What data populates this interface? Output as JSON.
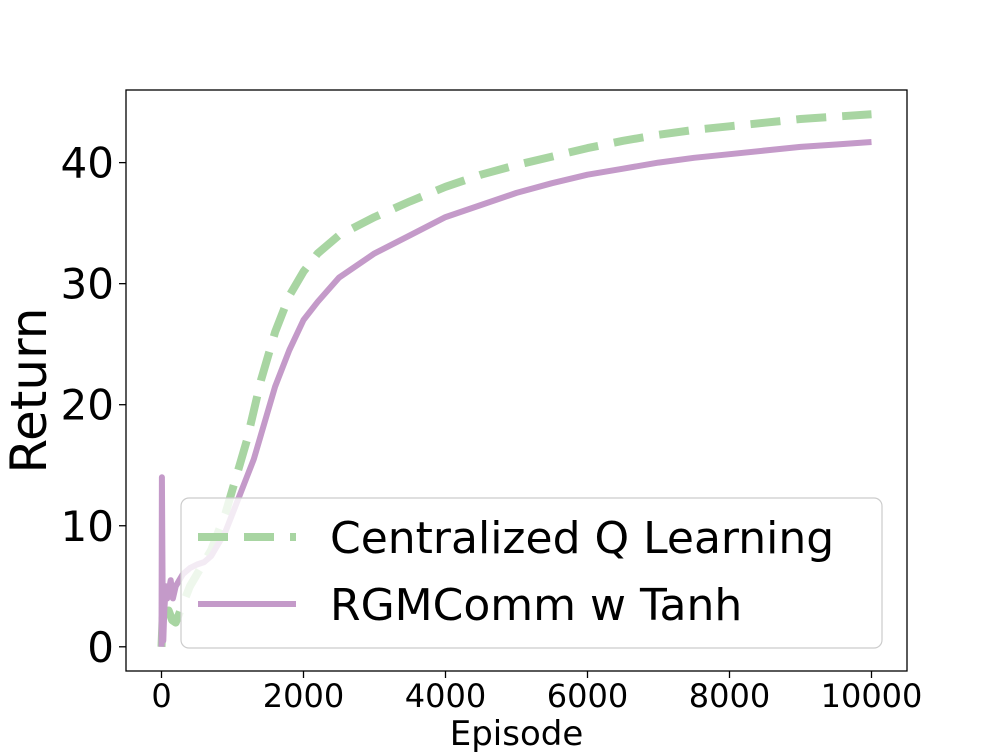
{
  "chart_data": {
    "type": "line",
    "title": "",
    "xlabel": "Episode",
    "ylabel": "Return",
    "xlim": [
      -500,
      10500
    ],
    "ylim": [
      -2,
      46
    ],
    "x_ticks": [
      0,
      2000,
      4000,
      6000,
      8000,
      10000
    ],
    "y_ticks": [
      0,
      10,
      20,
      30,
      40
    ],
    "x_tick_labels": [
      "0",
      "2000",
      "4000",
      "6000",
      "8000",
      "10000"
    ],
    "y_tick_labels": [
      "0",
      "10",
      "20",
      "30",
      "40"
    ],
    "grid": false,
    "legend": "lower-right",
    "series": [
      {
        "name": "Centralized Q Learning",
        "color": "#a8d5a2",
        "style": "dashed",
        "points": [
          [
            0,
            0
          ],
          [
            20,
            3
          ],
          [
            50,
            2.5
          ],
          [
            100,
            3
          ],
          [
            150,
            2.2
          ],
          [
            200,
            2
          ],
          [
            300,
            3.5
          ],
          [
            400,
            5
          ],
          [
            500,
            6
          ],
          [
            600,
            7
          ],
          [
            700,
            8
          ],
          [
            800,
            9.5
          ],
          [
            900,
            11
          ],
          [
            1000,
            13
          ],
          [
            1100,
            15
          ],
          [
            1200,
            17
          ],
          [
            1300,
            19.5
          ],
          [
            1400,
            22
          ],
          [
            1500,
            24
          ],
          [
            1600,
            26
          ],
          [
            1800,
            29
          ],
          [
            2000,
            31
          ],
          [
            2200,
            32.5
          ],
          [
            2500,
            34
          ],
          [
            3000,
            35.5
          ],
          [
            3500,
            36.8
          ],
          [
            4000,
            38
          ],
          [
            4500,
            39
          ],
          [
            5000,
            39.8
          ],
          [
            5500,
            40.5
          ],
          [
            6000,
            41.2
          ],
          [
            6500,
            41.8
          ],
          [
            7000,
            42.3
          ],
          [
            7500,
            42.7
          ],
          [
            8000,
            43.0
          ],
          [
            8500,
            43.3
          ],
          [
            9000,
            43.6
          ],
          [
            9500,
            43.8
          ],
          [
            10000,
            44.0
          ]
        ]
      },
      {
        "name": "RGMComm w Tanh",
        "color": "#c49ac9",
        "style": "solid",
        "points": [
          [
            0,
            0
          ],
          [
            5,
            14
          ],
          [
            15,
            5
          ],
          [
            25,
            0.5
          ],
          [
            40,
            3
          ],
          [
            60,
            5
          ],
          [
            80,
            4
          ],
          [
            100,
            4.5
          ],
          [
            130,
            5.5
          ],
          [
            160,
            4
          ],
          [
            200,
            5
          ],
          [
            250,
            5.5
          ],
          [
            300,
            6
          ],
          [
            400,
            6.5
          ],
          [
            500,
            6.8
          ],
          [
            600,
            7
          ],
          [
            700,
            7.5
          ],
          [
            800,
            8.5
          ],
          [
            900,
            9.5
          ],
          [
            1000,
            11
          ],
          [
            1100,
            12.5
          ],
          [
            1200,
            14
          ],
          [
            1300,
            15.5
          ],
          [
            1400,
            17.5
          ],
          [
            1500,
            19.5
          ],
          [
            1600,
            21.5
          ],
          [
            1800,
            24.5
          ],
          [
            2000,
            27
          ],
          [
            2200,
            28.5
          ],
          [
            2500,
            30.5
          ],
          [
            3000,
            32.5
          ],
          [
            3500,
            34
          ],
          [
            4000,
            35.5
          ],
          [
            4500,
            36.5
          ],
          [
            5000,
            37.5
          ],
          [
            5500,
            38.3
          ],
          [
            6000,
            39
          ],
          [
            6500,
            39.5
          ],
          [
            7000,
            40
          ],
          [
            7500,
            40.4
          ],
          [
            8000,
            40.7
          ],
          [
            8500,
            41
          ],
          [
            9000,
            41.3
          ],
          [
            9500,
            41.5
          ],
          [
            10000,
            41.7
          ]
        ]
      }
    ]
  }
}
